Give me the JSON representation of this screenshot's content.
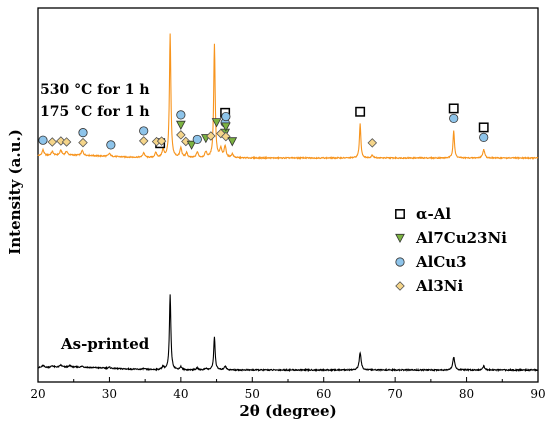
{
  "chart_data": {
    "type": "line",
    "xlabel": "2θ (degree)",
    "ylabel": "Intensity (a.u.)",
    "xlim": [
      20,
      90
    ],
    "x_ticks": [
      "20",
      "30",
      "40",
      "50",
      "60",
      "70",
      "80",
      "90"
    ],
    "y_ticks_shown": false,
    "grid": false,
    "legend_position": "right",
    "legend": [
      {
        "marker": "square",
        "name": "α-Al",
        "color": "#ffffff"
      },
      {
        "marker": "triangle",
        "name": "Al7Cu23Ni",
        "color": "#7cb342"
      },
      {
        "marker": "circle",
        "name": "AlCu3",
        "color": "#8ec4ea"
      },
      {
        "marker": "diamond",
        "name": "Al3Ni",
        "color": "#f5d58a"
      }
    ],
    "series": [
      {
        "name": "530 °C for 1 h\n175 °C for 1 h",
        "label_lines": [
          "530 °C for 1 h",
          "175 °C for 1 h"
        ],
        "color": "#f7941d",
        "baseline": 0.55,
        "peaks": [
          {
            "x": 20.7,
            "h": 0.06
          },
          {
            "x": 22.0,
            "h": 0.04
          },
          {
            "x": 23.2,
            "h": 0.05
          },
          {
            "x": 24.0,
            "h": 0.04
          },
          {
            "x": 26.2,
            "h": 0.05
          },
          {
            "x": 30.0,
            "h": 0.03
          },
          {
            "x": 34.8,
            "h": 0.05
          },
          {
            "x": 36.5,
            "h": 0.05
          },
          {
            "x": 37.5,
            "h": 0.08
          },
          {
            "x": 38.5,
            "h": 1.3
          },
          {
            "x": 40.0,
            "h": 0.1
          },
          {
            "x": 40.8,
            "h": 0.05
          },
          {
            "x": 42.3,
            "h": 0.06
          },
          {
            "x": 43.5,
            "h": 0.06
          },
          {
            "x": 44.7,
            "h": 1.2
          },
          {
            "x": 45.6,
            "h": 0.09
          },
          {
            "x": 46.2,
            "h": 0.12
          },
          {
            "x": 47.2,
            "h": 0.04
          },
          {
            "x": 65.1,
            "h": 0.36
          },
          {
            "x": 66.8,
            "h": 0.03
          },
          {
            "x": 78.2,
            "h": 0.29
          },
          {
            "x": 82.4,
            "h": 0.09
          }
        ]
      },
      {
        "name": "As-printed",
        "color": "#000000",
        "baseline": 0.0,
        "peaks": [
          {
            "x": 20.7,
            "h": 0.02
          },
          {
            "x": 22.0,
            "h": 0.015
          },
          {
            "x": 23.2,
            "h": 0.02
          },
          {
            "x": 24.5,
            "h": 0.015
          },
          {
            "x": 26.2,
            "h": 0.01
          },
          {
            "x": 30.0,
            "h": 0.01
          },
          {
            "x": 34.8,
            "h": 0.01
          },
          {
            "x": 37.5,
            "h": 0.03
          },
          {
            "x": 38.5,
            "h": 0.75
          },
          {
            "x": 40.0,
            "h": 0.03
          },
          {
            "x": 42.3,
            "h": 0.02
          },
          {
            "x": 43.5,
            "h": 0.015
          },
          {
            "x": 44.7,
            "h": 0.33
          },
          {
            "x": 46.2,
            "h": 0.04
          },
          {
            "x": 65.1,
            "h": 0.17
          },
          {
            "x": 78.2,
            "h": 0.13
          },
          {
            "x": 82.4,
            "h": 0.04
          }
        ]
      }
    ],
    "phase_markers": [
      {
        "x": 37.1,
        "stack": [
          "square"
        ]
      },
      {
        "x": 46.2,
        "stack": [
          "square",
          "circle",
          "triangle"
        ]
      },
      {
        "x": 65.1,
        "stack": [
          "square"
        ]
      },
      {
        "x": 78.2,
        "stack": [
          "square",
          "circle"
        ]
      },
      {
        "x": 82.4,
        "stack": [
          "square",
          "circle"
        ]
      },
      {
        "x": 20.7,
        "stack": [
          "circle"
        ]
      },
      {
        "x": 22.0,
        "stack": [
          "diamond"
        ]
      },
      {
        "x": 23.2,
        "stack": [
          "diamond"
        ]
      },
      {
        "x": 24.0,
        "stack": [
          "diamond"
        ]
      },
      {
        "x": 26.3,
        "stack": [
          "circle",
          "diamond"
        ]
      },
      {
        "x": 30.2,
        "stack": [
          "circle"
        ]
      },
      {
        "x": 34.8,
        "stack": [
          "circle",
          "diamond"
        ]
      },
      {
        "x": 36.6,
        "stack": [
          "diamond"
        ]
      },
      {
        "x": 37.3,
        "stack": [
          "diamond"
        ]
      },
      {
        "x": 40.0,
        "stack": [
          "circle",
          "triangle",
          "diamond"
        ]
      },
      {
        "x": 40.7,
        "stack": [
          "diamond"
        ]
      },
      {
        "x": 41.5,
        "stack": [
          "triangle"
        ]
      },
      {
        "x": 42.3,
        "stack": [
          "circle"
        ]
      },
      {
        "x": 43.5,
        "stack": [
          "triangle"
        ]
      },
      {
        "x": 44.2,
        "stack": [
          "diamond"
        ]
      },
      {
        "x": 45.0,
        "stack": [
          "triangle"
        ]
      },
      {
        "x": 45.6,
        "stack": [
          "diamond"
        ]
      },
      {
        "x": 46.3,
        "stack": [
          "circle",
          "triangle",
          "diamond"
        ]
      },
      {
        "x": 47.2,
        "stack": [
          "triangle"
        ]
      },
      {
        "x": 66.8,
        "stack": [
          "diamond"
        ]
      }
    ]
  }
}
